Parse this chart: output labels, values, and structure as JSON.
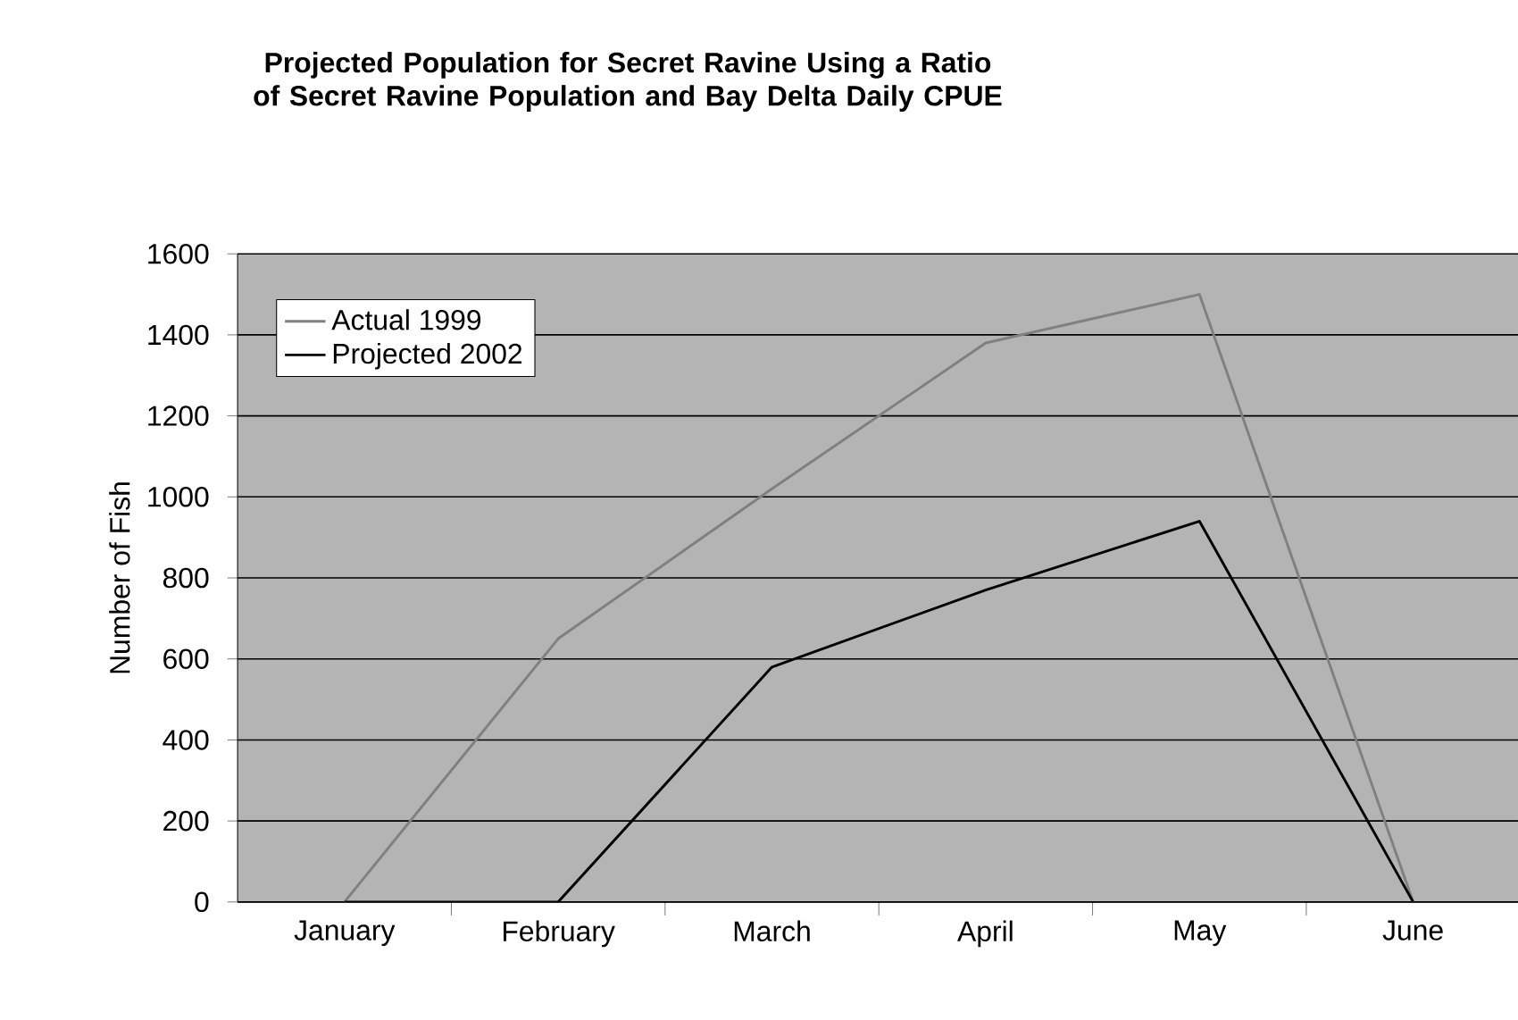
{
  "chart_data": {
    "type": "line",
    "title": "Projected Population for Secret Ravine Using a Ratio of Secret Ravine Population and Bay Delta Daily CPUE",
    "ylabel": "Number of Fish",
    "categories": [
      "January",
      "February",
      "March",
      "April",
      "May",
      "June"
    ],
    "series": [
      {
        "name": "Actual 1999",
        "color": "#808080",
        "values": [
          0,
          650,
          1020,
          1380,
          1500,
          0
        ]
      },
      {
        "name": "Projected 2002",
        "color": "#000000",
        "values": [
          0,
          0,
          580,
          770,
          940,
          0
        ]
      }
    ],
    "ylim": [
      0,
      1600
    ],
    "yticks": [
      0,
      200,
      400,
      600,
      800,
      1000,
      1200,
      1400,
      1600
    ],
    "grid": "y",
    "legend": "top left",
    "marker": "none",
    "line_style": "solid"
  }
}
